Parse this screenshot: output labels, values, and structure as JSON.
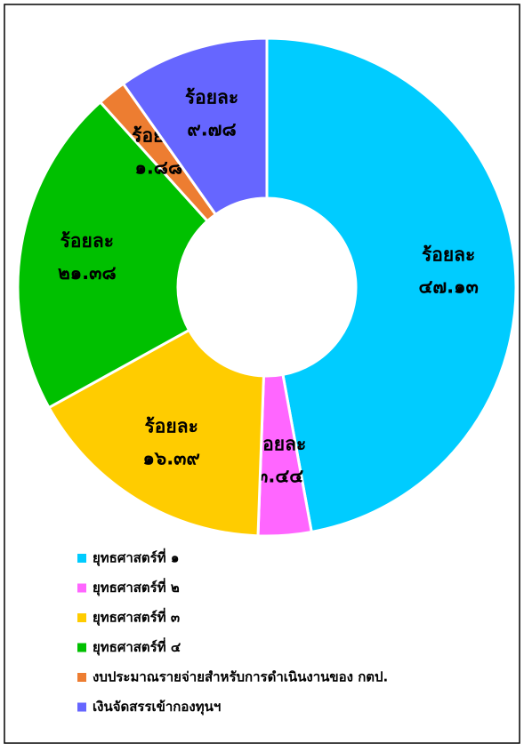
{
  "chart_data": {
    "type": "donut",
    "categories": [
      "ยุทธศาสตร์ที่ ๑",
      "ยุทธศาสตร์ที่ ๒",
      "ยุทธศาสตร์ที่ ๓",
      "ยุทธศาสตร์ที่ ๔",
      "งบประมาณรายจ่ายสำหรับการดำเนินงานของ กตป.",
      "เงินจัดสรรเข้ากองทุนฯ"
    ],
    "values": [
      47.13,
      3.44,
      16.39,
      21.38,
      1.88,
      9.78
    ],
    "label_prefix": "ร้อยละ",
    "value_labels": [
      "๔๗.๑๓",
      "๓.๔๔",
      "๑๖.๓๙",
      "๒๑.๓๘",
      "๑.๘๘",
      "๙.๗๘"
    ],
    "colors": [
      "#00ccff",
      "#ff66ff",
      "#ffcc00",
      "#00c000",
      "#ed7d31",
      "#6666ff"
    ],
    "legend": "bottom"
  }
}
